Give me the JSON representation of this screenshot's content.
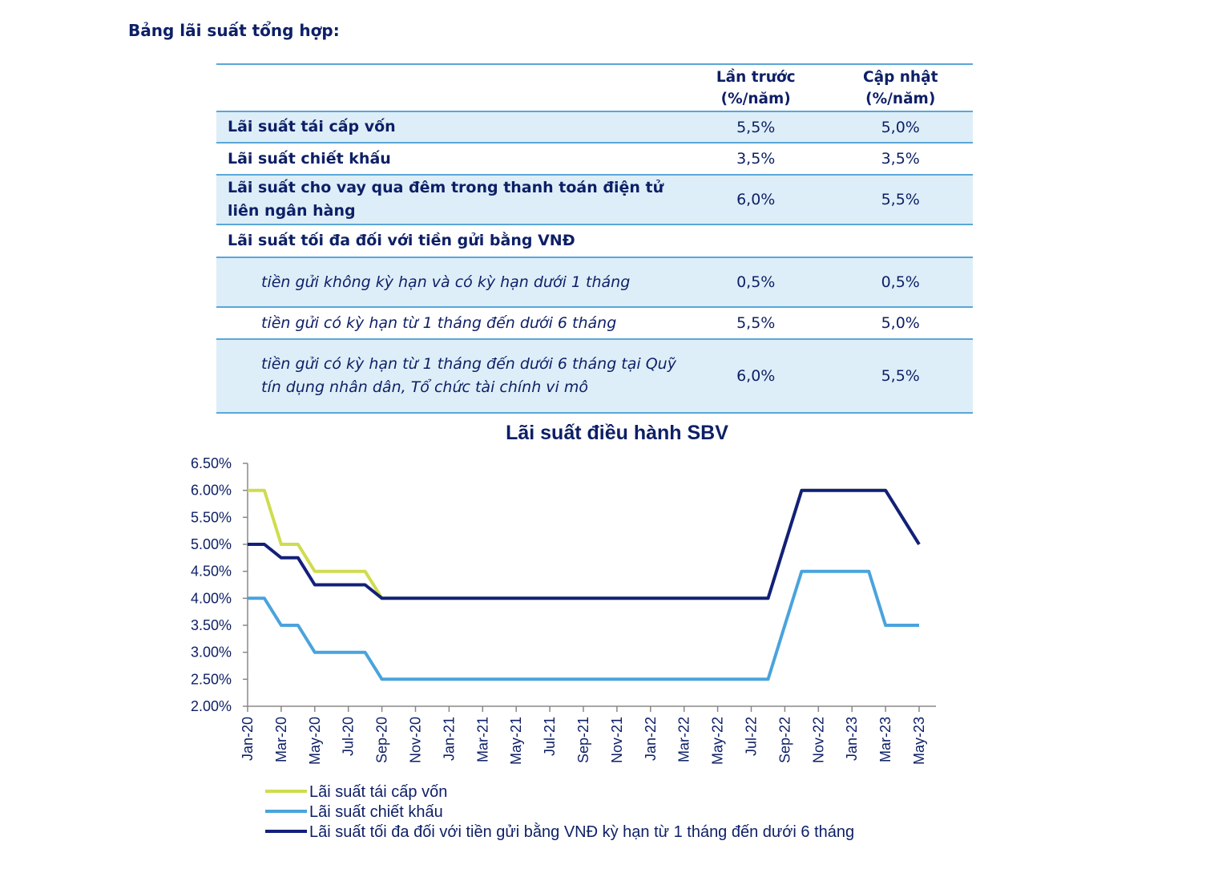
{
  "section_title": "Bảng lãi suất tổng hợp:",
  "table": {
    "headers": [
      "",
      "Lần trước (%/năm)",
      "Cập nhật (%/năm)"
    ],
    "rows": [
      {
        "label": "Lãi suất tái cấp vốn",
        "previous": "5,5%",
        "updated": "5,0%",
        "style": "bold",
        "shaded": true
      },
      {
        "label": "Lãi suất chiết khấu",
        "previous": "3,5%",
        "updated": "3,5%",
        "style": "bold",
        "shaded": false
      },
      {
        "label": "Lãi suất cho vay qua đêm trong thanh toán điện tử liên ngân hàng",
        "previous": "6,0%",
        "updated": "5,5%",
        "style": "bold",
        "shaded": true
      },
      {
        "label": "Lãi suất tối đa đối với tiền gửi bằng VNĐ",
        "previous": "",
        "updated": "",
        "style": "bold",
        "shaded": false
      },
      {
        "label": "tiền gửi không kỳ hạn và có kỳ hạn dưới 1 tháng",
        "previous": "0,5%",
        "updated": "0,5%",
        "style": "italic",
        "shaded": true
      },
      {
        "label": "tiền gửi có kỳ hạn từ 1 tháng đến dưới 6 tháng",
        "previous": "5,5%",
        "updated": "5,0%",
        "style": "italic",
        "shaded": false
      },
      {
        "label": "tiền gửi có kỳ hạn từ 1 tháng đến dưới 6 tháng tại Quỹ tín dụng nhân dân, Tổ chức tài chính vi mô",
        "previous": "6,0%",
        "updated": "5,5%",
        "style": "italic",
        "shaded": true
      }
    ]
  },
  "chart_data": {
    "type": "line",
    "title": "Lãi suất điều hành SBV",
    "xlabel": "",
    "ylabel": "",
    "ylim": [
      0.02,
      0.065
    ],
    "y_ticks": [
      0.065,
      0.06,
      0.055,
      0.05,
      0.045,
      0.04,
      0.035,
      0.03,
      0.025,
      0.02
    ],
    "y_tick_labels": [
      "6.50%",
      "6.00%",
      "5.50%",
      "5.00%",
      "4.50%",
      "4.00%",
      "3.50%",
      "3.00%",
      "2.50%",
      "2.00%"
    ],
    "x_tick_labels": [
      "Jan-20",
      "Mar-20",
      "May-20",
      "Jul-20",
      "Sep-20",
      "Nov-20",
      "Jan-21",
      "Mar-21",
      "May-21",
      "Jul-21",
      "Sep-21",
      "Nov-21",
      "Jan-22",
      "Mar-22",
      "May-22",
      "Jul-22",
      "Sep-22",
      "Nov-22",
      "Jan-23",
      "Mar-23",
      "May-23"
    ],
    "x": [
      "Jan-20",
      "Feb-20",
      "Mar-20",
      "Apr-20",
      "May-20",
      "Jun-20",
      "Jul-20",
      "Aug-20",
      "Sep-20",
      "Oct-20",
      "Nov-20",
      "Dec-20",
      "Jan-21",
      "Feb-21",
      "Mar-21",
      "Apr-21",
      "May-21",
      "Jun-21",
      "Jul-21",
      "Aug-21",
      "Sep-21",
      "Oct-21",
      "Nov-21",
      "Dec-21",
      "Jan-22",
      "Feb-22",
      "Mar-22",
      "Apr-22",
      "May-22",
      "Jun-22",
      "Jul-22",
      "Aug-22",
      "Sep-22",
      "Oct-22",
      "Nov-22",
      "Dec-22",
      "Jan-23",
      "Feb-23",
      "Mar-23",
      "Apr-23",
      "May-23"
    ],
    "series": [
      {
        "name": "Lãi suất tái cấp vốn",
        "color": "#cfdc4f",
        "values": [
          0.06,
          0.06,
          0.05,
          0.05,
          0.045,
          0.045,
          0.045,
          0.045,
          0.04,
          0.04,
          0.04,
          0.04,
          0.04,
          0.04,
          0.04,
          0.04,
          0.04,
          0.04,
          0.04,
          0.04,
          0.04,
          0.04,
          0.04,
          0.04,
          0.04,
          0.04,
          0.04,
          0.04,
          0.04,
          0.04,
          0.04,
          0.04,
          0.05,
          0.06,
          0.06,
          0.06,
          0.06,
          0.06,
          0.06,
          0.055,
          0.05
        ]
      },
      {
        "name": "Lãi suất chiết khấu",
        "color": "#4aa3dc",
        "values": [
          0.04,
          0.04,
          0.035,
          0.035,
          0.03,
          0.03,
          0.03,
          0.03,
          0.025,
          0.025,
          0.025,
          0.025,
          0.025,
          0.025,
          0.025,
          0.025,
          0.025,
          0.025,
          0.025,
          0.025,
          0.025,
          0.025,
          0.025,
          0.025,
          0.025,
          0.025,
          0.025,
          0.025,
          0.025,
          0.025,
          0.025,
          0.025,
          0.035,
          0.045,
          0.045,
          0.045,
          0.045,
          0.045,
          0.035,
          0.035,
          0.035
        ]
      },
      {
        "name": "Lãi suất tối đa đối với tiền gửi bằng VNĐ kỳ hạn từ 1 tháng đến dưới 6 tháng",
        "color": "#12207a",
        "values": [
          0.05,
          0.05,
          0.0475,
          0.0475,
          0.0425,
          0.0425,
          0.0425,
          0.0425,
          0.04,
          0.04,
          0.04,
          0.04,
          0.04,
          0.04,
          0.04,
          0.04,
          0.04,
          0.04,
          0.04,
          0.04,
          0.04,
          0.04,
          0.04,
          0.04,
          0.04,
          0.04,
          0.04,
          0.04,
          0.04,
          0.04,
          0.04,
          0.04,
          0.05,
          0.06,
          0.06,
          0.06,
          0.06,
          0.06,
          0.06,
          0.055,
          0.05
        ]
      }
    ],
    "grid": false,
    "legend_position": "bottom-left"
  }
}
